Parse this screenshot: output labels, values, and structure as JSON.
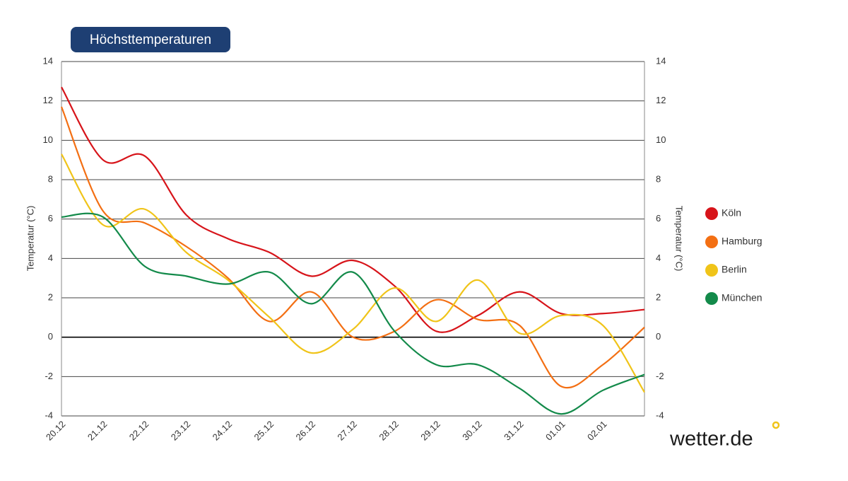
{
  "chart_data": {
    "type": "line",
    "title": "Höchsttemperaturen",
    "y_label": "Temperatur (°C)",
    "y2_label": "Temperatur (°C)",
    "categories": [
      "20.12",
      "21.12",
      "22.12",
      "23.12",
      "24.12",
      "25.12",
      "26.12",
      "27.12",
      "28.12",
      "29.12",
      "30.12",
      "31.12",
      "01.01",
      "02.01",
      null
    ],
    "series": [
      {
        "name": "Köln",
        "color": "#d7141a",
        "values": [
          12.7,
          9.0,
          9.2,
          6.2,
          5.0,
          4.3,
          3.1,
          3.9,
          2.6,
          0.3,
          1.1,
          2.3,
          1.2,
          1.2,
          1.4
        ]
      },
      {
        "name": "Hamburg",
        "color": "#f36f13",
        "values": [
          11.7,
          6.4,
          5.8,
          4.6,
          3.0,
          0.8,
          2.3,
          0.0,
          0.3,
          1.9,
          0.9,
          0.6,
          -2.5,
          -1.4,
          0.5
        ]
      },
      {
        "name": "Berlin",
        "color": "#f0c419",
        "values": [
          9.3,
          5.7,
          6.5,
          4.3,
          2.9,
          1.0,
          -0.8,
          0.4,
          2.5,
          0.8,
          2.9,
          0.2,
          1.1,
          0.6,
          -2.8
        ]
      },
      {
        "name": "München",
        "color": "#138a4a",
        "values": [
          6.1,
          6.1,
          3.6,
          3.1,
          2.7,
          3.3,
          1.7,
          3.3,
          0.3,
          -1.4,
          -1.4,
          -2.6,
          -3.9,
          -2.7,
          -1.9
        ]
      }
    ],
    "ylim": [
      -4,
      14
    ],
    "yticks": [
      -4,
      -2,
      0,
      2,
      4,
      6,
      8,
      10,
      12,
      14
    ],
    "y2lim": [
      -4,
      14
    ],
    "y2ticks": [
      -4,
      -2,
      0,
      2,
      4,
      6,
      8,
      10,
      12,
      14
    ],
    "grid": true,
    "legend": "right",
    "logo": "wetter.de"
  }
}
